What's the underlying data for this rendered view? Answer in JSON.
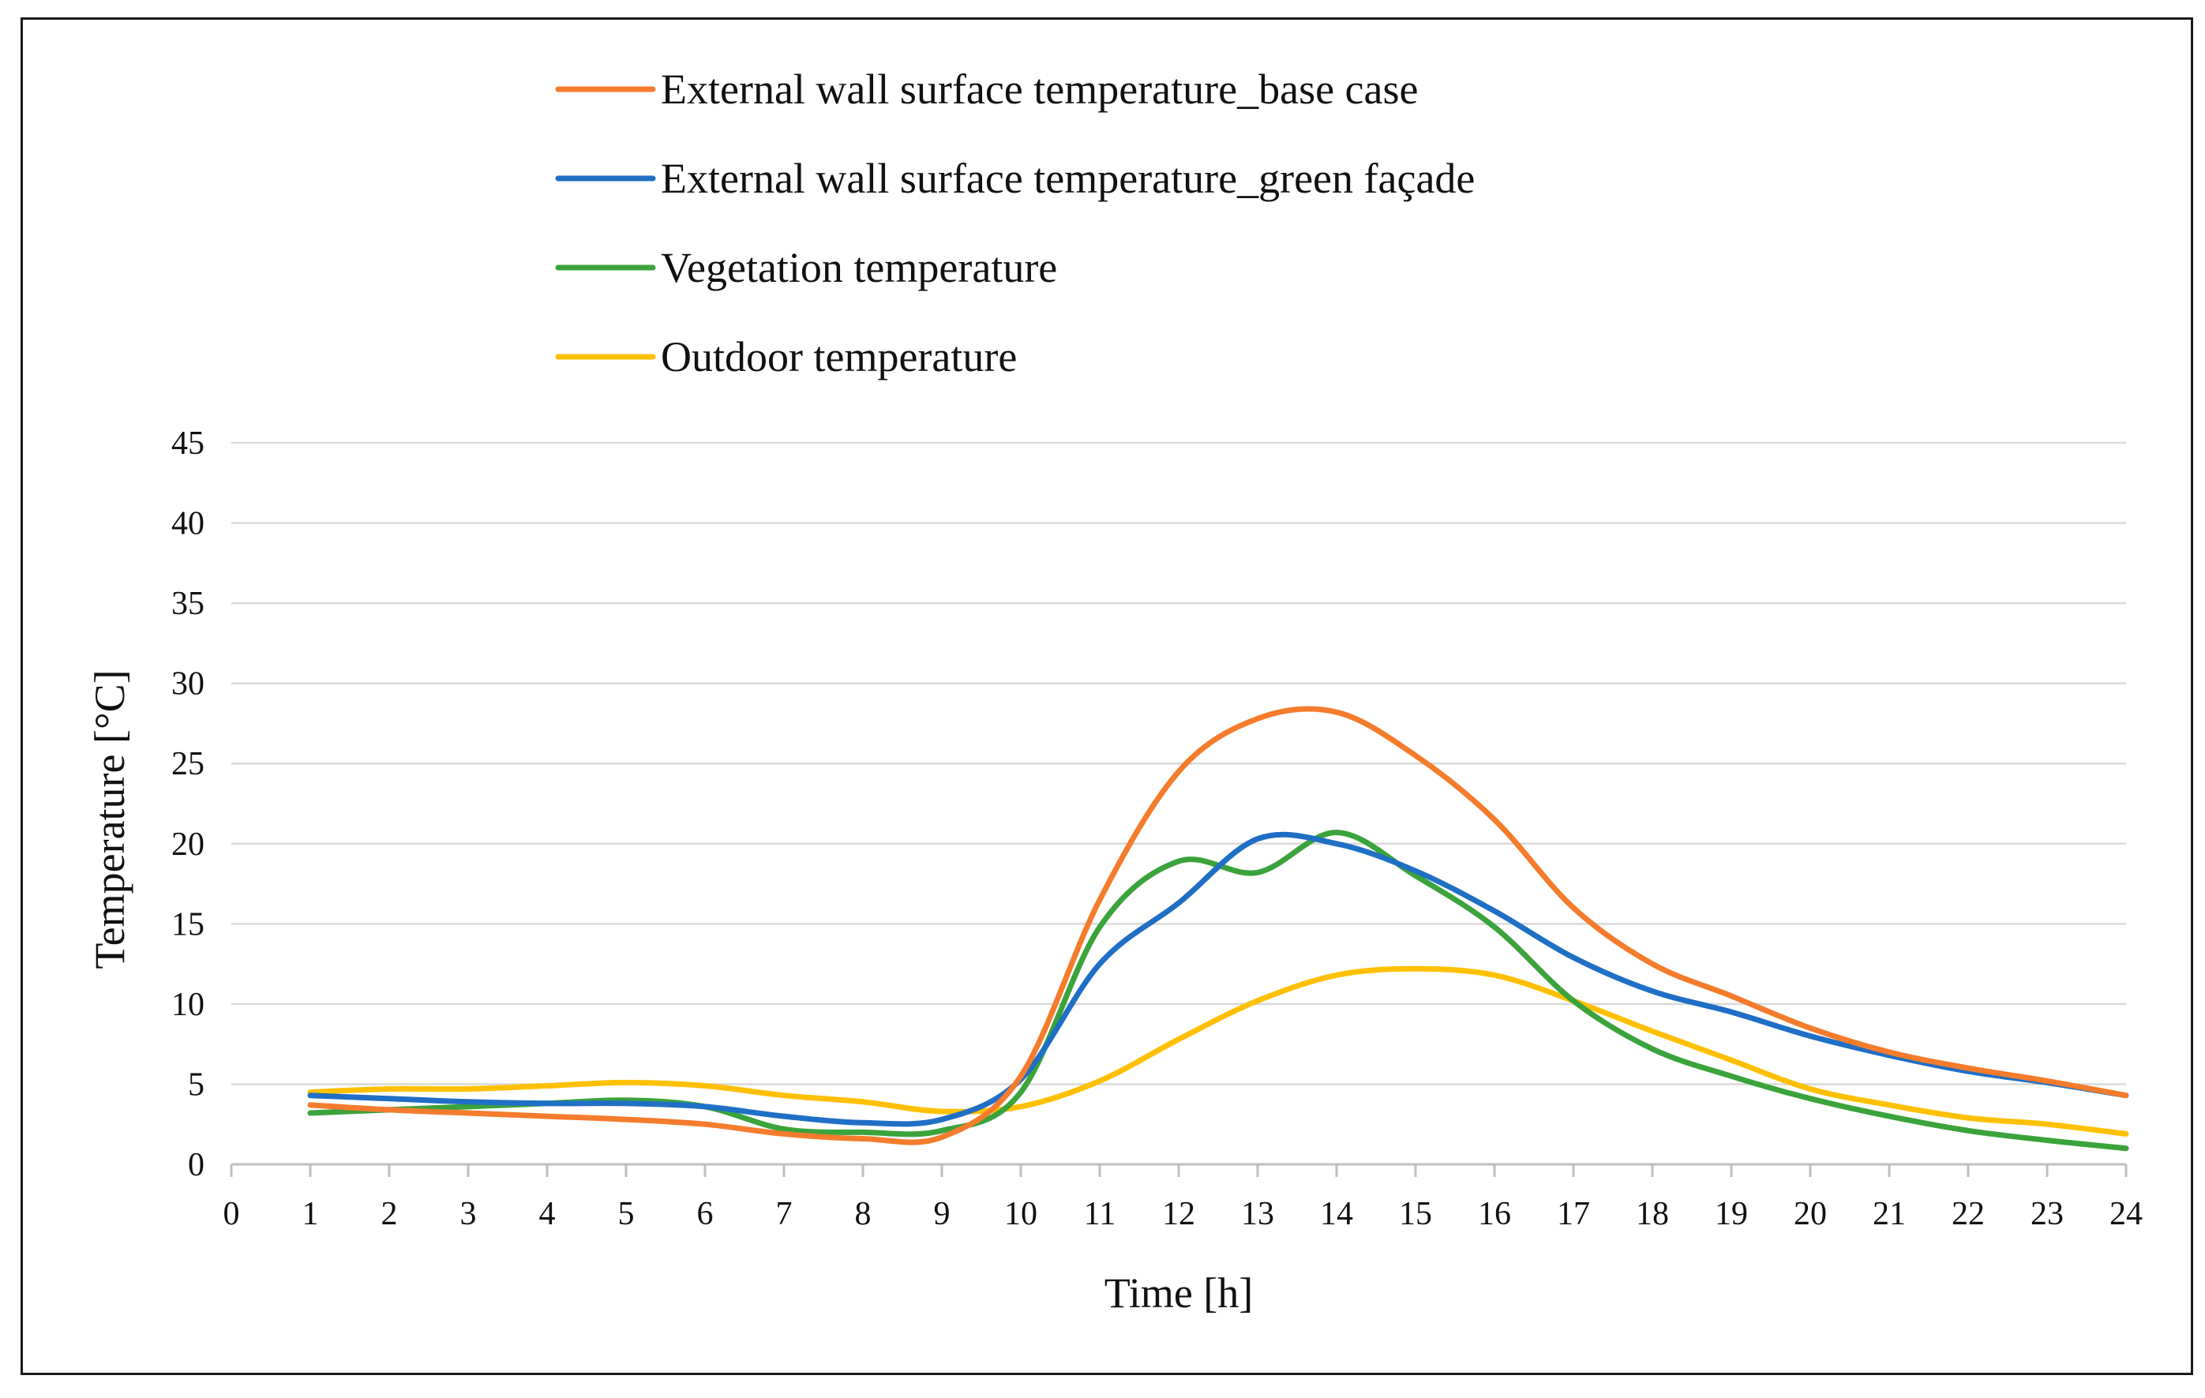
{
  "chart_data": {
    "type": "line",
    "title": "",
    "xlabel": "Time [h]",
    "ylabel": "Temperature  [°C]",
    "xlim": [
      0,
      24
    ],
    "ylim": [
      0,
      45
    ],
    "x_ticks": [
      0,
      1,
      2,
      3,
      4,
      5,
      6,
      7,
      8,
      9,
      10,
      11,
      12,
      13,
      14,
      15,
      16,
      17,
      18,
      19,
      20,
      21,
      22,
      23,
      24
    ],
    "y_ticks": [
      0,
      5,
      10,
      15,
      20,
      25,
      30,
      35,
      40,
      45
    ],
    "grid": true,
    "legend_position": "top",
    "x": [
      1,
      2,
      3,
      4,
      5,
      6,
      7,
      8,
      9,
      10,
      11,
      12,
      13,
      14,
      15,
      16,
      17,
      18,
      19,
      20,
      21,
      22,
      23,
      24
    ],
    "series": [
      {
        "name": "External wall surface temperature_base case",
        "color": "#F47C2C",
        "values": [
          3.7,
          3.4,
          3.2,
          3.0,
          2.8,
          2.5,
          1.9,
          1.6,
          1.7,
          5.5,
          16.5,
          24.5,
          27.8,
          28.2,
          25.5,
          21.5,
          16.0,
          12.5,
          10.5,
          8.5,
          7.0,
          6.0,
          5.2,
          4.3
        ]
      },
      {
        "name": "External wall surface temperature_green façade",
        "color": "#1F6FC5",
        "values": [
          4.3,
          4.1,
          3.9,
          3.8,
          3.8,
          3.6,
          3.0,
          2.6,
          2.8,
          5.3,
          12.5,
          16.3,
          20.3,
          20.0,
          18.3,
          15.8,
          12.9,
          10.8,
          9.5,
          8.0,
          6.8,
          5.8,
          5.1,
          4.3
        ]
      },
      {
        "name": "Vegetation temperature",
        "color": "#3BA33B",
        "values": [
          3.2,
          3.4,
          3.6,
          3.8,
          4.0,
          3.6,
          2.2,
          2.0,
          2.1,
          4.5,
          14.8,
          18.9,
          18.2,
          20.7,
          18.0,
          14.8,
          10.2,
          7.2,
          5.5,
          4.1,
          3.0,
          2.1,
          1.5,
          1.0
        ]
      },
      {
        "name": "Outdoor temperature",
        "color": "#FFC000",
        "values": [
          4.5,
          4.7,
          4.7,
          4.9,
          5.1,
          4.9,
          4.3,
          3.9,
          3.3,
          3.6,
          5.2,
          7.8,
          10.2,
          11.8,
          12.2,
          11.8,
          10.2,
          8.3,
          6.5,
          4.7,
          3.7,
          2.9,
          2.5,
          1.9
        ]
      }
    ]
  }
}
